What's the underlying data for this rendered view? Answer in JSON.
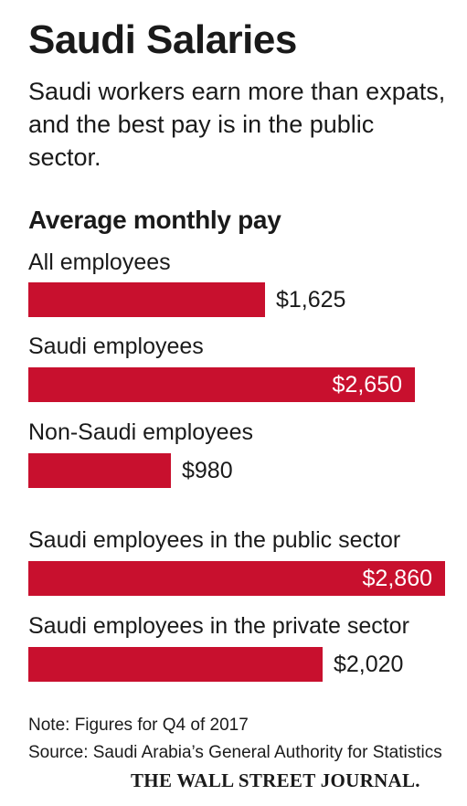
{
  "title": "Saudi Salaries",
  "subtitle": "Saudi workers earn more than expats, and the best pay is in the public sector.",
  "chart_subtitle": "Average monthly pay",
  "chart_data": {
    "type": "bar",
    "orientation": "horizontal",
    "title": "Saudi Salaries",
    "subtitle": "Average monthly pay",
    "categories": [
      "All employees",
      "Saudi employees",
      "Non-Saudi employees",
      "Saudi employees in the public sector",
      "Saudi employees in the private sector"
    ],
    "values": [
      1625,
      2650,
      980,
      2860,
      2020
    ],
    "value_labels": [
      "$1,625",
      "$2,650",
      "$980",
      "$2,860",
      "$2,020"
    ],
    "unit": "USD",
    "xlim": [
      0,
      2860
    ],
    "grid": false,
    "legend": "none",
    "bar_color": "#c8102e"
  },
  "note": "Note: Figures for Q4 of 2017",
  "source": "Source: Saudi Arabia’s General Authority for Statistics",
  "brand": "THE WALL STREET JOURNAL."
}
